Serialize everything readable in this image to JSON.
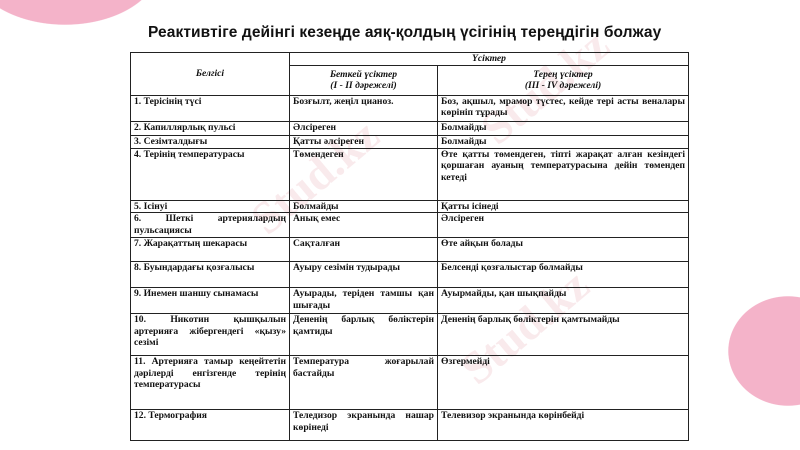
{
  "title": "Реактивтіге дейінгі кезеңде аяқ-қолдың үсігінің тереңдігін болжау",
  "watermark": "Stud.kz",
  "colors": {
    "accent_blob": "#f4b3c9"
  },
  "table": {
    "header_sign": "Белгісі",
    "header_group": "Үсіктер",
    "header_superficial": "Беткей үсіктер\n(І - ІІ дәрежелі)",
    "header_deep": "Терең үсіктер\n(ІІІ - IV дәрежелі)",
    "rows": [
      {
        "sign": "1. Терісінің түсі",
        "superficial": "Бозғылт, жеңіл цианоз.",
        "deep": "Боз, ақшыл, мрамор түстес, кейде тері асты веналары көрініп тұрады"
      },
      {
        "sign": "2. Капиллярлық пульсі",
        "superficial": "Әлсіреген",
        "deep": "Болмайды"
      },
      {
        "sign": "3. Сезімталдығы",
        "superficial": "Қатты әлсіреген",
        "deep": "Болмайды"
      },
      {
        "sign": "4. Терінің температурасы",
        "superficial": "Төмендеген",
        "deep": "Өте қатты төмендеген, тіпті жарақат алған кезіндегі қоршаған ауаның температурасына дейін төмендеп кетеді"
      },
      {
        "sign": "5. Ісінуі",
        "superficial": "Болмайды",
        "deep": "Қатты ісінеді"
      },
      {
        "sign": "6. Шеткі артериялардың пульсациясы",
        "superficial": "Анық емес",
        "deep": "Әлсіреген"
      },
      {
        "sign": "7. Жарақаттың шекарасы",
        "superficial": "Сақталған",
        "deep": "Өте айқын болады"
      },
      {
        "sign": "8. Буындардағы қозғалысы",
        "superficial": "Ауыру сезімін тудырады",
        "deep": "Белсенді қозғалыстар болмайды"
      },
      {
        "sign": "9. Инемен шаншу сынамасы",
        "superficial": "Ауырады, теріден тамшы қан шығады",
        "deep": "Ауырмайды, қан шықпайды"
      },
      {
        "sign": "10. Никотин қышқылын артерияға жібергендегі «қызу» сезімі",
        "superficial": "Дененің барлық бөліктерін қамтиды",
        "deep": "Дененің барлық бөліктерін қамтымайды"
      },
      {
        "sign": "11. Артерияға тамыр кеңейтетін дәрілерді енгізгенде терінің температурасы",
        "superficial": "Температура жоғарылай бастайды",
        "deep": "Өзгермейді"
      },
      {
        "sign": "12. Термография",
        "superficial": "Теледизор экранында нашар көрінеді",
        "deep": "Телевизор экранында көрінбейді"
      }
    ]
  }
}
